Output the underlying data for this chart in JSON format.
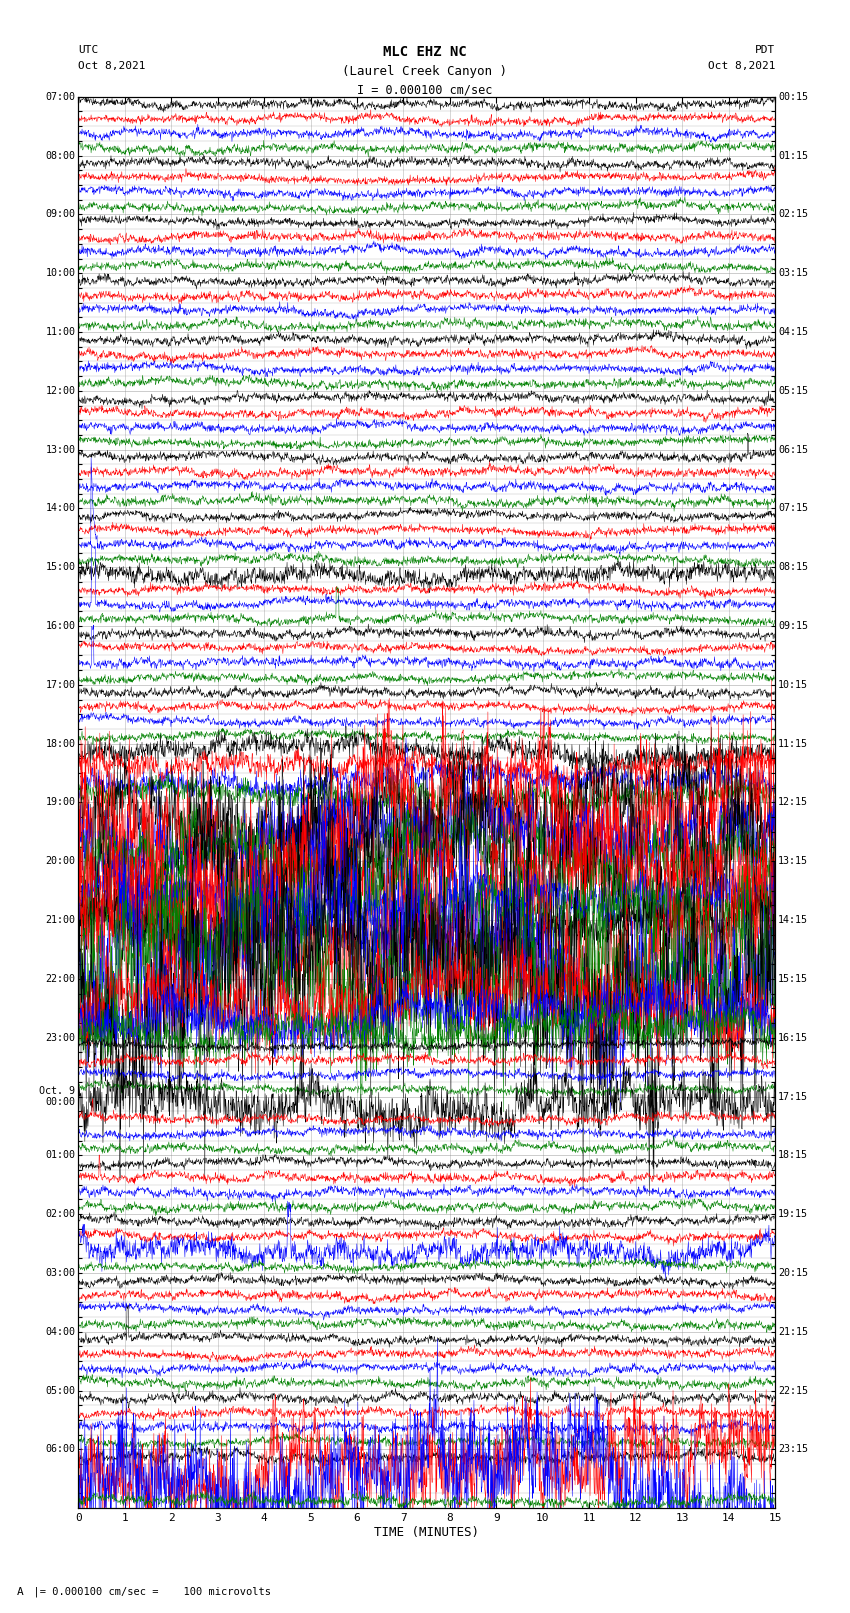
{
  "title_line1": "MLC EHZ NC",
  "title_line2": "(Laurel Creek Canyon )",
  "title_line3": "I = 0.000100 cm/sec",
  "label_utc": "UTC",
  "label_date_left": "Oct 8,2021",
  "label_pdt": "PDT",
  "label_date_right": "Oct 8,2021",
  "xlabel": "TIME (MINUTES)",
  "scale_label": "  |= 0.000100 cm/sec =    100 microvolts",
  "scale_marker": "A",
  "utc_labels": [
    "07:00",
    "",
    "",
    "",
    "08:00",
    "",
    "",
    "",
    "09:00",
    "",
    "",
    "",
    "10:00",
    "",
    "",
    "",
    "11:00",
    "",
    "",
    "",
    "12:00",
    "",
    "",
    "",
    "13:00",
    "",
    "",
    "",
    "14:00",
    "",
    "",
    "",
    "15:00",
    "",
    "",
    "",
    "16:00",
    "",
    "",
    "",
    "17:00",
    "",
    "",
    "",
    "18:00",
    "",
    "",
    "",
    "19:00",
    "",
    "",
    "",
    "20:00",
    "",
    "",
    "",
    "21:00",
    "",
    "",
    "",
    "22:00",
    "",
    "",
    "",
    "23:00",
    "",
    "",
    "",
    "Oct. 9\n00:00",
    "",
    "",
    "",
    "01:00",
    "",
    "",
    "",
    "02:00",
    "",
    "",
    "",
    "03:00",
    "",
    "",
    "",
    "04:00",
    "",
    "",
    "",
    "05:00",
    "",
    "",
    "",
    "06:00",
    "",
    "",
    ""
  ],
  "pdt_labels": [
    "00:15",
    "",
    "",
    "",
    "01:15",
    "",
    "",
    "",
    "02:15",
    "",
    "",
    "",
    "03:15",
    "",
    "",
    "",
    "04:15",
    "",
    "",
    "",
    "05:15",
    "",
    "",
    "",
    "06:15",
    "",
    "",
    "",
    "07:15",
    "",
    "",
    "",
    "08:15",
    "",
    "",
    "",
    "09:15",
    "",
    "",
    "",
    "10:15",
    "",
    "",
    "",
    "11:15",
    "",
    "",
    "",
    "12:15",
    "",
    "",
    "",
    "13:15",
    "",
    "",
    "",
    "14:15",
    "",
    "",
    "",
    "15:15",
    "",
    "",
    "",
    "16:15",
    "",
    "",
    "",
    "17:15",
    "",
    "",
    "",
    "18:15",
    "",
    "",
    "",
    "19:15",
    "",
    "",
    "",
    "20:15",
    "",
    "",
    "",
    "21:15",
    "",
    "",
    "",
    "22:15",
    "",
    "",
    "",
    "23:15",
    "",
    "",
    ""
  ],
  "colors": [
    "black",
    "red",
    "blue",
    "green"
  ],
  "bg_color": "white",
  "xmin": 0,
  "xmax": 15,
  "xticks": [
    0,
    1,
    2,
    3,
    4,
    5,
    6,
    7,
    8,
    9,
    10,
    11,
    12,
    13,
    14,
    15
  ],
  "active_hour_groups": [
    12,
    13,
    14,
    15
  ],
  "moderate_hour_groups": [
    11
  ],
  "last_group_active_colors": [
    1,
    2
  ],
  "n_hour_groups": 24,
  "traces_per_hour": 4
}
